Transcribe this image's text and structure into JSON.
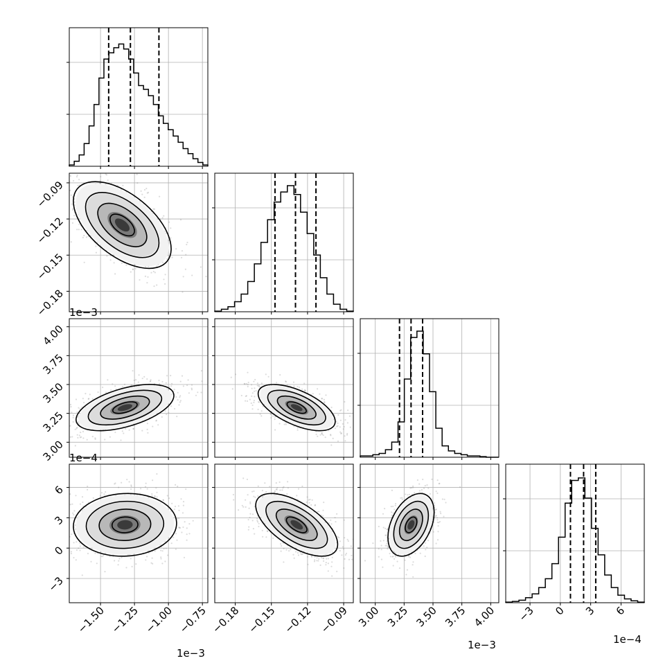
{
  "chart_data": {
    "type": "corner",
    "parameters": [
      {
        "id": "p0",
        "ticks": [
          -1.5,
          -1.25,
          -1.0,
          -0.75
        ],
        "tick_labels": [
          "−1.50",
          "−1.25",
          "−1.00",
          "−0.75"
        ],
        "range": [
          -1.73,
          -0.71
        ],
        "offset": "1e−3",
        "quantiles": [
          -1.44,
          -1.28,
          -1.07
        ],
        "hist_peak": -1.34,
        "hist_values": [
          0.01,
          0.04,
          0.09,
          0.18,
          0.32,
          0.49,
          0.7,
          0.85,
          0.9,
          0.94,
          0.97,
          0.93,
          0.85,
          0.74,
          0.64,
          0.61,
          0.56,
          0.49,
          0.4,
          0.34,
          0.29,
          0.24,
          0.19,
          0.14,
          0.1,
          0.06,
          0.03,
          0.01
        ]
      },
      {
        "id": "p1",
        "ticks": [
          -0.18,
          -0.15,
          -0.12,
          -0.09
        ],
        "tick_labels": [
          "−0.18",
          "−0.15",
          "−0.12",
          "−0.09"
        ],
        "range": [
          -0.197,
          -0.082
        ],
        "offset": "",
        "quantiles": [
          -0.147,
          -0.13,
          -0.113
        ],
        "hist_peak": -0.129,
        "hist_values": [
          0.005,
          0.02,
          0.04,
          0.08,
          0.14,
          0.24,
          0.38,
          0.55,
          0.73,
          0.87,
          0.95,
          1.0,
          0.93,
          0.79,
          0.62,
          0.45,
          0.27,
          0.14,
          0.06,
          0.02,
          0.005
        ]
      },
      {
        "id": "p2",
        "ticks": [
          3.0,
          3.25,
          3.5,
          3.75,
          4.0
        ],
        "tick_labels": [
          "3.00",
          "3.25",
          "3.50",
          "3.75",
          "4.00"
        ],
        "range": [
          2.87,
          4.07
        ],
        "offset": "1e−3",
        "quantiles": [
          3.21,
          3.31,
          3.41
        ],
        "hist_peak": 3.31,
        "hist_values": [
          0.01,
          0.01,
          0.02,
          0.03,
          0.06,
          0.12,
          0.28,
          0.62,
          0.95,
          1.0,
          0.82,
          0.52,
          0.23,
          0.09,
          0.05,
          0.03,
          0.02,
          0.01,
          0.01,
          0.005,
          0.0,
          0.0
        ]
      },
      {
        "id": "p3",
        "ticks": [
          -3,
          0,
          3,
          6
        ],
        "tick_labels": [
          "−3",
          "0",
          "3",
          "6"
        ],
        "range": [
          -5.4,
          8.3
        ],
        "offset": "1e−4",
        "quantiles": [
          1.0,
          2.3,
          3.5
        ],
        "hist_peak": 2.3,
        "hist_values": [
          0.005,
          0.01,
          0.02,
          0.04,
          0.07,
          0.12,
          0.19,
          0.31,
          0.52,
          0.79,
          0.97,
          0.99,
          0.83,
          0.59,
          0.38,
          0.22,
          0.12,
          0.06,
          0.03,
          0.015,
          0.005
        ]
      }
    ],
    "pairs": [
      {
        "row": 1,
        "col": 0,
        "center": [
          -1.34,
          -0.125
        ],
        "sd": [
          0.18,
          0.018
        ],
        "corr": -0.55
      },
      {
        "row": 2,
        "col": 0,
        "center": [
          -1.32,
          3.3
        ],
        "sd": [
          0.18,
          0.1
        ],
        "corr": 0.52
      },
      {
        "row": 2,
        "col": 1,
        "center": [
          -0.129,
          3.3
        ],
        "sd": [
          0.016,
          0.1
        ],
        "corr": -0.6
      },
      {
        "row": 3,
        "col": 0,
        "center": [
          -1.32,
          2.3
        ],
        "sd": [
          0.19,
          1.55
        ],
        "corr": 0.05
      },
      {
        "row": 3,
        "col": 1,
        "center": [
          -0.129,
          2.3
        ],
        "sd": [
          0.017,
          1.55
        ],
        "corr": -0.62
      },
      {
        "row": 3,
        "col": 2,
        "center": [
          3.31,
          2.3
        ],
        "sd": [
          0.1,
          1.55
        ],
        "corr": 0.4
      }
    ],
    "contour_levels_sigma": [
      0.5,
      1.0,
      1.5,
      2.0
    ],
    "quantiles": [
      0.16,
      0.5,
      0.84
    ],
    "grid": true,
    "colors": {
      "line": "#000000",
      "grid": "#b0b0b0",
      "points": "#808080"
    }
  }
}
